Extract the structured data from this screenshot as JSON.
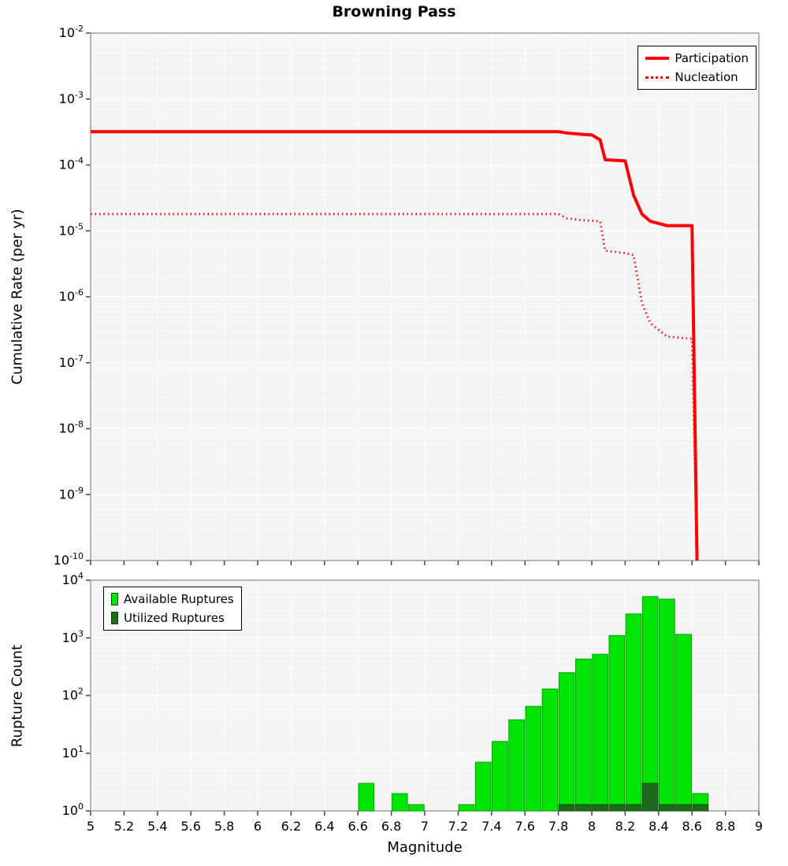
{
  "title": "Browning Pass",
  "chart_data": [
    {
      "type": "line",
      "title": "Browning Pass",
      "xlabel": "",
      "ylabel": "Cumulative Rate (per yr)",
      "xlim": [
        5,
        9
      ],
      "y_exponent_range": [
        -2,
        -10
      ],
      "x_ticks": [
        5,
        5.2,
        5.4,
        5.6,
        5.8,
        6,
        6.2,
        6.4,
        6.6,
        6.8,
        7,
        7.2,
        7.4,
        7.6,
        7.8,
        8,
        8.2,
        8.4,
        8.6,
        8.8,
        9
      ],
      "grid": true,
      "legend": {
        "position": "top-right",
        "entries": [
          "Participation",
          "Nucleation"
        ]
      },
      "series": [
        {
          "name": "Participation",
          "color": "#ff0000",
          "style": "solid",
          "points": [
            [
              5.0,
              0.00032
            ],
            [
              7.8,
              0.00032
            ],
            [
              7.85,
              0.000305
            ],
            [
              7.95,
              0.00029
            ],
            [
              8.0,
              0.000285
            ],
            [
              8.05,
              0.00024
            ],
            [
              8.08,
              0.00012
            ],
            [
              8.2,
              0.000115
            ],
            [
              8.25,
              3.5e-05
            ],
            [
              8.3,
              1.8e-05
            ],
            [
              8.35,
              1.4e-05
            ],
            [
              8.45,
              1.2e-05
            ],
            [
              8.6,
              1.2e-05
            ],
            [
              8.63,
              1e-10
            ]
          ]
        },
        {
          "name": "Nucleation",
          "color": "#ff0000",
          "style": "dotted",
          "points": [
            [
              5.0,
              1.8e-05
            ],
            [
              7.8,
              1.8e-05
            ],
            [
              7.85,
              1.55e-05
            ],
            [
              7.95,
              1.45e-05
            ],
            [
              8.05,
              1.4e-05
            ],
            [
              8.08,
              5e-06
            ],
            [
              8.2,
              4.6e-06
            ],
            [
              8.25,
              4.3e-06
            ],
            [
              8.3,
              8e-07
            ],
            [
              8.35,
              4e-07
            ],
            [
              8.45,
              2.5e-07
            ],
            [
              8.6,
              2.3e-07
            ],
            [
              8.63,
              1e-10
            ]
          ]
        }
      ]
    },
    {
      "type": "bar",
      "xlabel": "Magnitude",
      "ylabel": "Rupture Count",
      "xlim": [
        5,
        9
      ],
      "y_exponent_range": [
        4,
        0
      ],
      "x_ticks": [
        5,
        5.2,
        5.4,
        5.6,
        5.8,
        6,
        6.2,
        6.4,
        6.6,
        6.8,
        7,
        7.2,
        7.4,
        7.6,
        7.8,
        8,
        8.2,
        8.4,
        8.6,
        8.8,
        9
      ],
      "grid": true,
      "bin_width": 0.1,
      "bins": [
        6.6,
        6.8,
        6.9,
        7.2,
        7.3,
        7.4,
        7.5,
        7.6,
        7.7,
        7.8,
        7.9,
        8.0,
        8.1,
        8.2,
        8.3,
        8.4,
        8.5,
        8.6
      ],
      "legend": {
        "position": "top-left",
        "entries": [
          "Available Ruptures",
          "Utilized Ruptures"
        ]
      },
      "series": [
        {
          "name": "Available Ruptures",
          "color": "#00e404",
          "edge": "#00a000",
          "values": [
            3,
            2,
            1,
            1,
            7,
            16,
            38,
            65,
            130,
            250,
            430,
            520,
            1100,
            2600,
            5200,
            4700,
            1150,
            2
          ]
        },
        {
          "name": "Utilized Ruptures",
          "color": "#1e6b1e",
          "edge": "#0f4d0f",
          "values": [
            0,
            0,
            0,
            0,
            0,
            0,
            0,
            0,
            0,
            1,
            1,
            1,
            1,
            1,
            3,
            1,
            1,
            1
          ]
        }
      ]
    }
  ]
}
